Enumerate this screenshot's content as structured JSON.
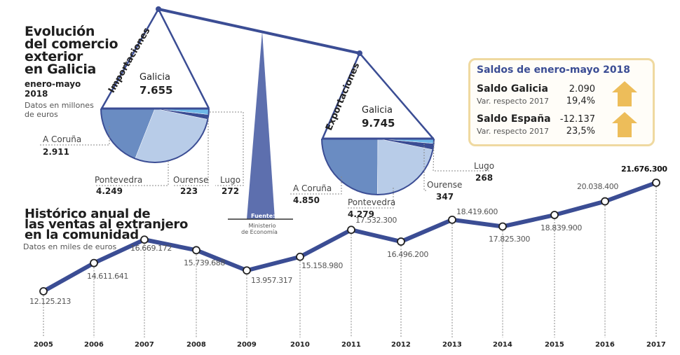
{
  "header": {
    "title_lines": [
      "Evolución",
      "del comercio",
      "exterior",
      "en Galicia"
    ],
    "period_lines": [
      "enero-mayo",
      "2018"
    ],
    "unit_lines": [
      "Datos en millones",
      "de euros"
    ]
  },
  "colors": {
    "beam": "#3b4d94",
    "coruna": "#6a8cc2",
    "pontevedra": "#b8cce8",
    "ourense": "#3b4d94",
    "lugo": "#6fb8e8",
    "line": "#3b4d94",
    "arrow": "#edbd5a"
  },
  "source": {
    "label": "Fuente:",
    "lines": [
      "Ministerio",
      "de Economía"
    ]
  },
  "importaciones": {
    "label": "Importaciones",
    "total_label": "Galicia",
    "total": "7.655",
    "slices": [
      {
        "name": "A Coruña",
        "value": 2911,
        "display": "2.911"
      },
      {
        "name": "Pontevedra",
        "value": 4249,
        "display": "4.249"
      },
      {
        "name": "Ourense",
        "value": 223,
        "display": "223"
      },
      {
        "name": "Lugo",
        "value": 272,
        "display": "272"
      }
    ]
  },
  "exportaciones": {
    "label": "Exportaciones",
    "total_label": "Galicia",
    "total": "9.745",
    "slices": [
      {
        "name": "A Coruña",
        "value": 4850,
        "display": "4.850"
      },
      {
        "name": "Pontevedra",
        "value": 4279,
        "display": "4.279"
      },
      {
        "name": "Ourense",
        "value": 347,
        "display": "347"
      },
      {
        "name": "Lugo",
        "value": 268,
        "display": "268"
      }
    ]
  },
  "saldos": {
    "title": "Saldos de enero-mayo 2018",
    "rows": [
      {
        "name": "Saldo Galicia",
        "value": "2.090",
        "var_label": "Var. respecto 2017",
        "var": "19,4%",
        "trend": "up-arrow"
      },
      {
        "name": "Saldo España",
        "value": "-12.137",
        "var_label": "Var. respecto 2017",
        "var": "23,5%",
        "trend": "up-arrow"
      }
    ]
  },
  "chart_data": {
    "type": "line",
    "title_lines": [
      "Histórico anual de",
      "las ventas al extranjero",
      "en la comunidad"
    ],
    "unit": "Datos en miles de euros",
    "x": [
      "2005",
      "2006",
      "2007",
      "2008",
      "2009",
      "2010",
      "2011",
      "2012",
      "2013",
      "2014",
      "2015",
      "2016",
      "2017"
    ],
    "values": [
      12125213,
      14611641,
      16669172,
      15739688,
      13957317,
      15158980,
      17532300,
      16496200,
      18419600,
      17825300,
      18839900,
      20038400,
      21676300
    ],
    "labels": [
      "12.125.213",
      "14.611.641",
      "16.669.172",
      "15.739.688",
      "13.957.317",
      "15.158.980",
      "17.532.300",
      "16.496.200",
      "18.419.600",
      "17.825.300",
      "18.839.900",
      "20.038.400",
      "21.676.300"
    ],
    "grid": false
  }
}
